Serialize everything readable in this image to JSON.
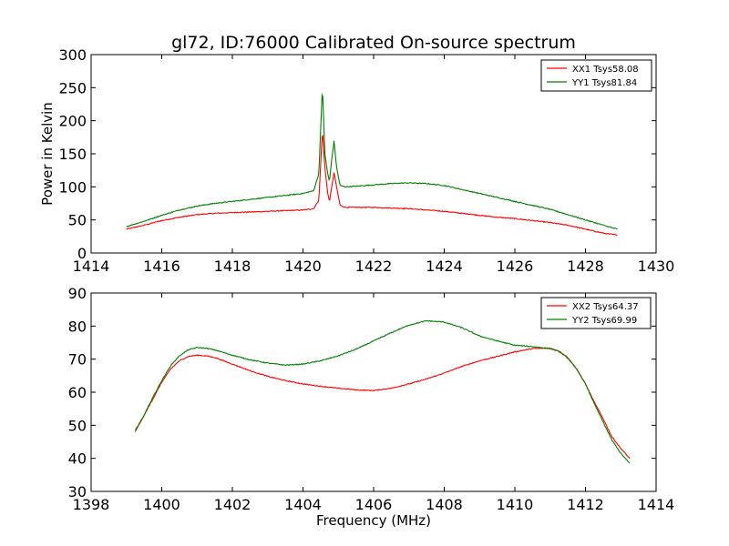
{
  "figure": {
    "title": "gl72, ID:76000 Calibrated On-source spectrum"
  },
  "chart_data": [
    {
      "type": "line",
      "title": "gl72, ID:76000 Calibrated On-source spectrum",
      "xlabel": "",
      "ylabel": "Power in Kelvin",
      "xlim": [
        1414,
        1430
      ],
      "ylim": [
        0,
        300
      ],
      "xticks": [
        1414,
        1416,
        1418,
        1420,
        1422,
        1424,
        1426,
        1428,
        1430
      ],
      "yticks": [
        0,
        50,
        100,
        150,
        200,
        250,
        300
      ],
      "grid": false,
      "legend_position": "top-right",
      "series": [
        {
          "name": "XX1 Tsys58.08",
          "color": "#ff0000",
          "x": [
            1415.0,
            1415.5,
            1416.0,
            1416.5,
            1417.0,
            1417.5,
            1418.0,
            1418.5,
            1419.0,
            1419.5,
            1420.0,
            1420.3,
            1420.45,
            1420.55,
            1420.62,
            1420.7,
            1420.75,
            1420.8,
            1420.88,
            1420.95,
            1421.05,
            1421.2,
            1421.5,
            1422.0,
            1422.5,
            1423.0,
            1423.5,
            1424.0,
            1424.5,
            1425.0,
            1425.5,
            1426.0,
            1426.5,
            1427.0,
            1427.5,
            1428.0,
            1428.5,
            1428.9
          ],
          "y": [
            36,
            42,
            49,
            54,
            58,
            60,
            61,
            62,
            63,
            64,
            65,
            67,
            80,
            186,
            130,
            90,
            78,
            95,
            122,
            100,
            72,
            69,
            69,
            69,
            68,
            67,
            65,
            63,
            60,
            57,
            54,
            52,
            49,
            46,
            42,
            36,
            30,
            27
          ]
        },
        {
          "name": "YY1 Tsys81.84",
          "color": "#008000",
          "x": [
            1415.0,
            1415.5,
            1416.0,
            1416.5,
            1417.0,
            1417.5,
            1418.0,
            1418.5,
            1419.0,
            1419.5,
            1420.0,
            1420.3,
            1420.45,
            1420.55,
            1420.62,
            1420.7,
            1420.75,
            1420.8,
            1420.88,
            1420.95,
            1421.05,
            1421.2,
            1421.5,
            1422.0,
            1422.5,
            1423.0,
            1423.5,
            1424.0,
            1424.5,
            1425.0,
            1425.5,
            1426.0,
            1426.5,
            1427.0,
            1427.5,
            1428.0,
            1428.5,
            1428.9
          ],
          "y": [
            40,
            48,
            57,
            65,
            71,
            75,
            78,
            81,
            84,
            87,
            90,
            94,
            120,
            252,
            150,
            120,
            108,
            135,
            170,
            130,
            102,
            100,
            101,
            103,
            105,
            106,
            105,
            102,
            96,
            90,
            84,
            78,
            72,
            66,
            58,
            50,
            42,
            36
          ]
        }
      ]
    },
    {
      "type": "line",
      "title": "",
      "xlabel": "Frequency (MHz)",
      "ylabel": "",
      "xlim": [
        1398,
        1414
      ],
      "ylim": [
        30,
        90
      ],
      "xticks": [
        1398,
        1400,
        1402,
        1404,
        1406,
        1408,
        1410,
        1412,
        1414
      ],
      "yticks": [
        30,
        40,
        50,
        60,
        70,
        80,
        90
      ],
      "grid": false,
      "legend_position": "top-right",
      "series": [
        {
          "name": "XX2 Tsys64.37",
          "color": "#ff0000",
          "x": [
            1399.25,
            1399.5,
            1399.75,
            1400.0,
            1400.25,
            1400.5,
            1400.75,
            1401.0,
            1401.25,
            1401.5,
            1401.75,
            1402.0,
            1402.5,
            1403.0,
            1403.5,
            1404.0,
            1404.5,
            1405.0,
            1405.5,
            1406.0,
            1406.5,
            1407.0,
            1407.5,
            1408.0,
            1408.5,
            1409.0,
            1409.5,
            1410.0,
            1410.5,
            1411.0,
            1411.25,
            1411.5,
            1411.75,
            1412.0,
            1412.25,
            1412.5,
            1412.75,
            1413.0,
            1413.25
          ],
          "y": [
            48.5,
            53,
            58,
            63,
            67,
            69.5,
            70.8,
            71.2,
            71,
            70.5,
            69.5,
            68.5,
            66.5,
            64.8,
            63.5,
            62.5,
            61.8,
            61.2,
            60.7,
            60.5,
            61.2,
            62.5,
            64,
            65.8,
            67.8,
            69.5,
            70.8,
            72.2,
            73.2,
            73.3,
            72.5,
            70.5,
            67,
            62.5,
            57,
            52,
            46.5,
            43,
            40
          ]
        },
        {
          "name": "YY2 Tsys69.99",
          "color": "#008000",
          "x": [
            1399.25,
            1399.5,
            1399.75,
            1400.0,
            1400.25,
            1400.5,
            1400.75,
            1401.0,
            1401.25,
            1401.5,
            1401.75,
            1402.0,
            1402.5,
            1403.0,
            1403.5,
            1404.0,
            1404.5,
            1405.0,
            1405.5,
            1406.0,
            1406.5,
            1407.0,
            1407.5,
            1408.0,
            1408.5,
            1409.0,
            1409.5,
            1410.0,
            1410.5,
            1411.0,
            1411.25,
            1411.5,
            1411.75,
            1412.0,
            1412.25,
            1412.5,
            1412.75,
            1413.0,
            1413.25
          ],
          "y": [
            48,
            53,
            58.5,
            63.5,
            68,
            71,
            72.8,
            73.5,
            73.3,
            72.8,
            72,
            71.2,
            69.8,
            68.8,
            68.2,
            68.5,
            69.5,
            71,
            73,
            75.5,
            78,
            80.3,
            81.6,
            81.2,
            79.5,
            77,
            75.5,
            74.2,
            73.8,
            73.2,
            72.3,
            70.3,
            67,
            62.5,
            56.5,
            51,
            45.5,
            41.5,
            38.5
          ]
        }
      ]
    }
  ]
}
